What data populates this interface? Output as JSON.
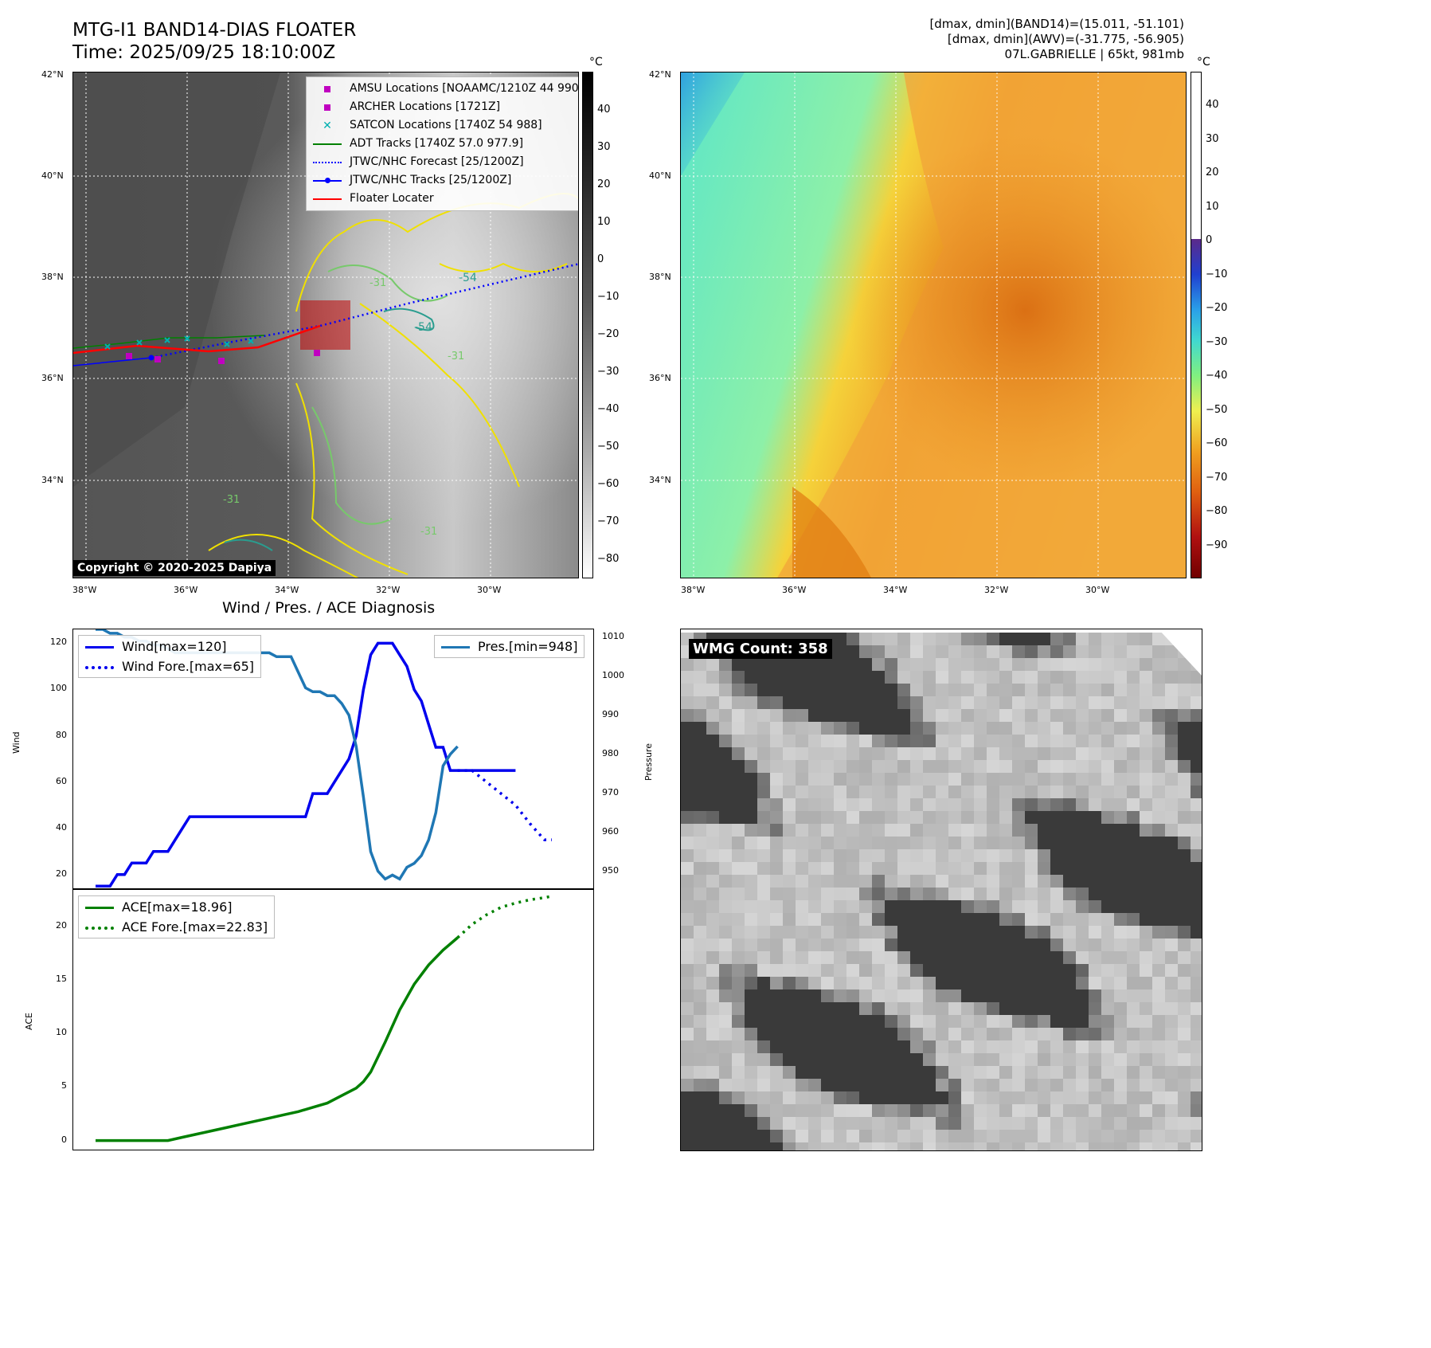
{
  "header": {
    "title_line1": "MTG-I1 BAND14-DIAS FLOATER",
    "title_line2": "Time: 2025/09/25 18:10:00Z",
    "info_line1": "[dmax, dmin](BAND14)=(15.011, -51.101)",
    "info_line2": "[dmax, dmin](AWV)=(-31.775, -56.905)",
    "info_line3": "07L.GABRIELLE | 65kt, 981mb"
  },
  "ir_panel": {
    "lat_ticks": [
      "42°N",
      "40°N",
      "38°N",
      "36°N",
      "34°N"
    ],
    "lon_ticks": [
      "38°W",
      "36°W",
      "34°W",
      "32°W",
      "30°W"
    ],
    "colorbar_unit": "°C",
    "colorbar_ticks": [
      "40",
      "30",
      "20",
      "10",
      "0",
      "−10",
      "−20",
      "−30",
      "−40",
      "−50",
      "−60",
      "−70",
      "−80"
    ],
    "contour_labels": [
      "-54",
      "-54",
      "-31",
      "-31",
      "-31",
      "-31"
    ],
    "copyright": "Copyright © 2020-2025 Dapiya",
    "legend": [
      {
        "label": "AMSU Locations [NOAAMC/1210Z 44 990]",
        "color": "#c000c0",
        "style": "square"
      },
      {
        "label": "ARCHER Locations [1721Z]",
        "color": "#c000c0",
        "style": "square"
      },
      {
        "label": "SATCON Locations [1740Z 54 988]",
        "color": "#00b0b0",
        "style": "x"
      },
      {
        "label": "ADT Tracks [1740Z 57.0 977.9]",
        "color": "#008000",
        "style": "line"
      },
      {
        "label": "JTWC/NHC Forecast [25/1200Z]",
        "color": "#0000ff",
        "style": "dotted"
      },
      {
        "label": "JTWC/NHC Tracks [25/1200Z]",
        "color": "#0000ff",
        "style": "line-dot"
      },
      {
        "label": "Floater Locater",
        "color": "#ff0000",
        "style": "line"
      }
    ]
  },
  "wv_panel": {
    "lat_ticks": [
      "42°N",
      "40°N",
      "38°N",
      "36°N",
      "34°N"
    ],
    "lon_ticks": [
      "38°W",
      "36°W",
      "34°W",
      "32°W",
      "30°W"
    ],
    "colorbar_unit": "°C",
    "colorbar_ticks": [
      "40",
      "30",
      "20",
      "10",
      "0",
      "−10",
      "−20",
      "−30",
      "−40",
      "−50",
      "−60",
      "−70",
      "−80",
      "−90"
    ]
  },
  "wmg_panel": {
    "badge": "WMG Count: 358"
  },
  "chart_data": [
    {
      "type": "line",
      "title": "Wind / Pres. / ACE Diagnosis",
      "ylabel": "Wind",
      "y2label": "Pressure",
      "ylim": [
        13,
        126
      ],
      "y2lim": [
        945,
        1012
      ],
      "yticks": [
        20,
        40,
        60,
        80,
        100,
        120
      ],
      "y2ticks": [
        950,
        960,
        970,
        980,
        990,
        1000,
        1010
      ],
      "series": [
        {
          "name": "Wind[max=120]",
          "color": "#0000ee",
          "style": "solid",
          "x": [
            0,
            1,
            2,
            3,
            4,
            5,
            6,
            7,
            8,
            9,
            10,
            11,
            12,
            13,
            14,
            15,
            16,
            17,
            18,
            19,
            20,
            21,
            22,
            23,
            24,
            25,
            26,
            27,
            28,
            29,
            30,
            31,
            32,
            33,
            34,
            35,
            36,
            37,
            38,
            39,
            40,
            41,
            42,
            43,
            44,
            45,
            46,
            47,
            48,
            49,
            50,
            51,
            52,
            53,
            54,
            55,
            56,
            57,
            58
          ],
          "values": [
            15,
            15,
            15,
            20,
            20,
            25,
            25,
            25,
            30,
            30,
            30,
            35,
            40,
            45,
            45,
            45,
            45,
            45,
            45,
            45,
            45,
            45,
            45,
            45,
            45,
            45,
            45,
            45,
            45,
            45,
            55,
            55,
            55,
            60,
            65,
            70,
            80,
            100,
            115,
            120,
            120,
            120,
            115,
            110,
            100,
            95,
            85,
            75,
            75,
            65,
            65,
            65,
            65,
            65,
            65,
            65,
            65,
            65,
            65
          ]
        },
        {
          "name": "Wind Fore.[max=65]",
          "color": "#0000ee",
          "style": "dotted",
          "x": [
            50,
            52,
            54,
            56,
            58,
            60,
            62,
            63
          ],
          "values": [
            65,
            65,
            60,
            55,
            50,
            42,
            35,
            35
          ]
        },
        {
          "name": "Pres.[min=948]",
          "color": "#1f77b4",
          "style": "solid",
          "axis": "y2",
          "x": [
            0,
            1,
            2,
            3,
            4,
            5,
            6,
            7,
            8,
            9,
            10,
            11,
            12,
            13,
            14,
            15,
            16,
            17,
            18,
            19,
            20,
            21,
            22,
            23,
            24,
            25,
            26,
            27,
            28,
            29,
            30,
            31,
            32,
            33,
            34,
            35,
            36,
            37,
            38,
            39,
            40,
            41,
            42,
            43,
            44,
            45,
            46,
            47,
            48,
            49,
            50
          ],
          "values": [
            1012,
            1012,
            1011,
            1011,
            1010,
            1010,
            1009,
            1009,
            1008,
            1008,
            1007,
            1006,
            1006,
            1006,
            1006,
            1006,
            1006,
            1006,
            1006,
            1006,
            1006,
            1006,
            1006,
            1006,
            1006,
            1005,
            1005,
            1005,
            1001,
            997,
            996,
            996,
            995,
            995,
            993,
            990,
            982,
            969,
            955,
            950,
            948,
            949,
            948,
            951,
            952,
            954,
            958,
            965,
            977,
            980,
            982
          ]
        }
      ]
    },
    {
      "type": "line",
      "ylabel": "ACE",
      "ylim": [
        -1,
        23.5
      ],
      "yticks": [
        0,
        5,
        10,
        15,
        20
      ],
      "series": [
        {
          "name": "ACE[max=18.96]",
          "color": "#008000",
          "style": "solid",
          "x": [
            0,
            10,
            12,
            14,
            16,
            18,
            20,
            22,
            24,
            26,
            28,
            30,
            32,
            34,
            36,
            37,
            38,
            40,
            42,
            44,
            46,
            48,
            50
          ],
          "values": [
            0,
            0,
            0.3,
            0.6,
            0.9,
            1.2,
            1.5,
            1.8,
            2.1,
            2.4,
            2.7,
            3.1,
            3.5,
            4.2,
            4.9,
            5.5,
            6.4,
            9.2,
            12.2,
            14.6,
            16.4,
            17.8,
            18.96
          ]
        },
        {
          "name": "ACE Fore.[max=22.83]",
          "color": "#008000",
          "style": "dotted",
          "x": [
            50,
            52,
            54,
            56,
            58,
            60,
            62,
            63
          ],
          "values": [
            18.96,
            20.2,
            21.1,
            21.8,
            22.2,
            22.5,
            22.7,
            22.83
          ]
        }
      ]
    }
  ]
}
